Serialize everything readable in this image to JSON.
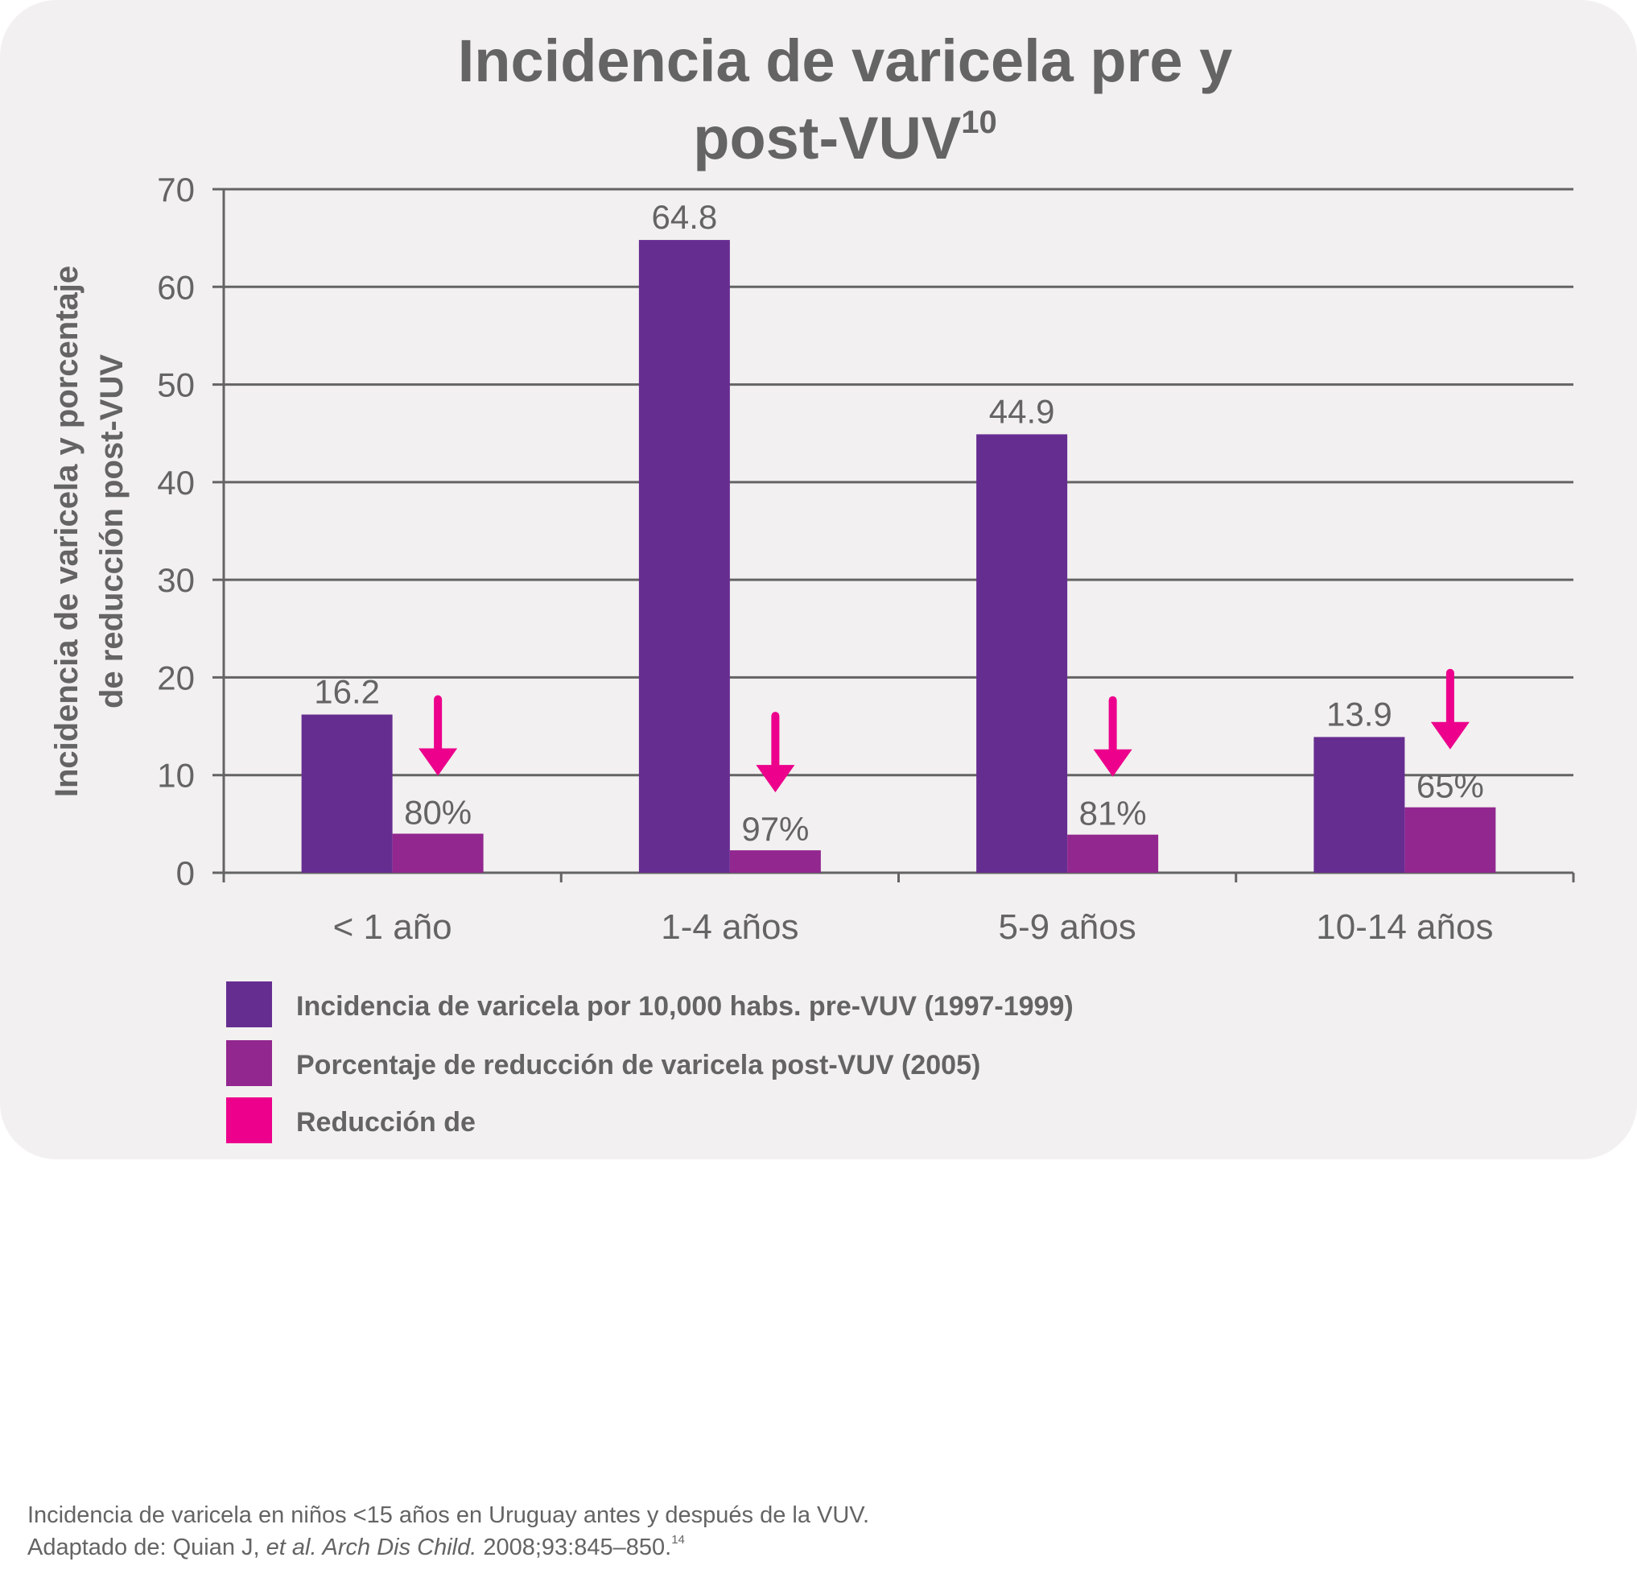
{
  "title": {
    "main": "Incidencia de varicela pre y",
    "second": "post-VUV",
    "superscript": "10"
  },
  "chart_data": {
    "type": "bar",
    "categories": [
      "< 1 año",
      "1-4 años",
      "5-9 años",
      "10-14 años"
    ],
    "series": [
      {
        "name": "Incidencia de varicela por 10,000 habs. pre-VUV (1997-1999)",
        "values": [
          16.2,
          64.8,
          44.9,
          13.9
        ],
        "labels": [
          "16.2",
          "64.8",
          "44.9",
          "13.9"
        ],
        "color": "#662d91"
      },
      {
        "name": "Porcentaje de reducción de varicela post-VUV (2005)",
        "values": [
          4,
          2.3,
          3.9,
          6.7
        ],
        "labels": [
          "80%",
          "97%",
          "81%",
          "65%"
        ],
        "color": "#92278f"
      }
    ],
    "markers": {
      "name": "Reducción de",
      "symbol": "down-arrow",
      "color": "#ec008c"
    },
    "ylabel": [
      "Incidencia de varicela y porcentaje",
      "de reducción post-VUV"
    ],
    "xlabel": "",
    "ylim": [
      0,
      70
    ],
    "yticks": [
      0,
      10,
      20,
      30,
      40,
      50,
      60,
      70
    ],
    "grid": true,
    "legend_position": "bottom-left"
  },
  "caption": {
    "line1": "Incidencia de varicela en niños <15 años en Uruguay antes y después de la VUV.",
    "line2_prefix": "Adaptado de: Quian J, ",
    "line2_italic": "et al. Arch Dis Child.",
    "line2_suffix": " 2008;93:845–850.",
    "line2_superscript": "14"
  },
  "colors": {
    "text": "#646464",
    "grid": "#646464",
    "card": "#f2f0f0"
  }
}
